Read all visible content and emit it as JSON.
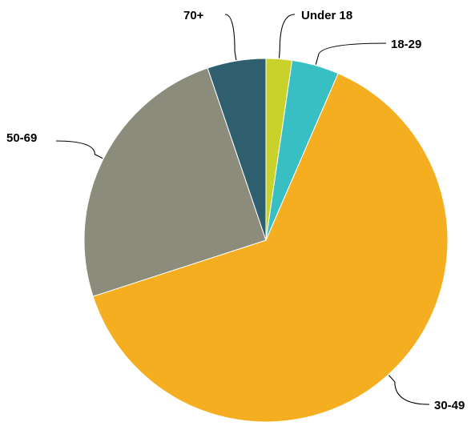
{
  "chart_data": {
    "type": "pie",
    "title": "",
    "categories": [
      "Under 18",
      "18-29",
      "30-49",
      "50-69",
      "70+"
    ],
    "values": [
      2.3,
      4.2,
      63.5,
      24.8,
      5.2
    ],
    "unit": "%",
    "colors": [
      "#c9d22b",
      "#38bfc3",
      "#f5ae20",
      "#8b8c7b",
      "#2f5e6e"
    ],
    "start_angle_deg": 0,
    "direction": "clockwise",
    "legend": "none",
    "labels_position": "outside-with-leader-lines"
  }
}
